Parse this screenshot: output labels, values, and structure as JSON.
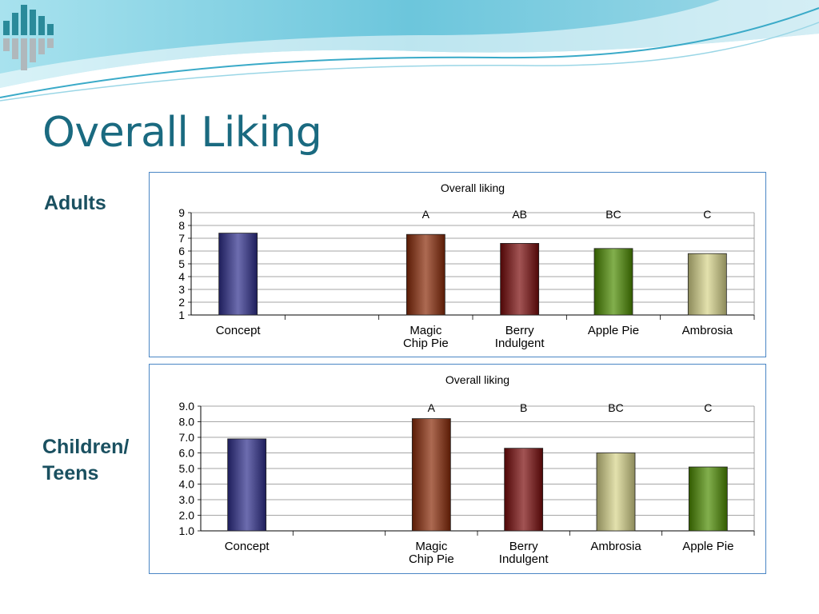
{
  "slide": {
    "title": "Overall Liking",
    "labels": {
      "adults": "Adults",
      "children": "Children/ Teens"
    }
  },
  "colors": {
    "title": "#1a6a80",
    "wave": "#7fcde0",
    "concept": "#2e2e8c",
    "magic_chip_pie": "#8a2a08",
    "berry_indulgent": "#7a0a0a",
    "apple_pie": "#4d8c00",
    "ambrosia": "#d7d48a"
  },
  "chart_data": [
    {
      "type": "bar",
      "title": "Overall liking",
      "categories": [
        "Concept",
        "",
        "Magic Chip Pie",
        "Berry Indulgent",
        "Apple Pie",
        "Ambrosia"
      ],
      "category_lines": [
        [
          "Concept"
        ],
        [
          ""
        ],
        [
          "Magic",
          "Chip Pie"
        ],
        [
          "Berry",
          "Indulgent"
        ],
        [
          "Apple Pie"
        ],
        [
          "Ambrosia"
        ]
      ],
      "values": [
        7.4,
        null,
        7.3,
        6.6,
        6.2,
        5.8
      ],
      "letters": [
        "",
        "",
        "A",
        "AB",
        "BC",
        "C"
      ],
      "bar_colors": [
        "#2e2e8c",
        null,
        "#8a2a08",
        "#7a0a0a",
        "#4d8c00",
        "#d7d48a"
      ],
      "ylim": [
        1,
        9
      ],
      "yticks": [
        "1",
        "2",
        "3",
        "4",
        "5",
        "6",
        "7",
        "8",
        "9"
      ],
      "grid": true,
      "legend": "none"
    },
    {
      "type": "bar",
      "title": "Overall liking",
      "categories": [
        "Concept",
        "",
        "Magic Chip Pie",
        "Berry Indulgent",
        "Ambrosia",
        "Apple Pie"
      ],
      "category_lines": [
        [
          "Concept"
        ],
        [
          ""
        ],
        [
          "Magic",
          "Chip Pie"
        ],
        [
          "Berry",
          "Indulgent"
        ],
        [
          "Ambrosia"
        ],
        [
          "Apple Pie"
        ]
      ],
      "values": [
        6.9,
        null,
        8.2,
        6.3,
        6.0,
        5.1
      ],
      "letters": [
        "",
        "",
        "A",
        "B",
        "BC",
        "C"
      ],
      "bar_colors": [
        "#2e2e8c",
        null,
        "#8a2a08",
        "#7a0a0a",
        "#d7d48a",
        "#4d8c00"
      ],
      "ylim": [
        1,
        9
      ],
      "yticks": [
        "1.0",
        "2.0",
        "3.0",
        "4.0",
        "5.0",
        "6.0",
        "7.0",
        "8.0",
        "9.0"
      ],
      "grid": true,
      "legend": "none"
    }
  ]
}
